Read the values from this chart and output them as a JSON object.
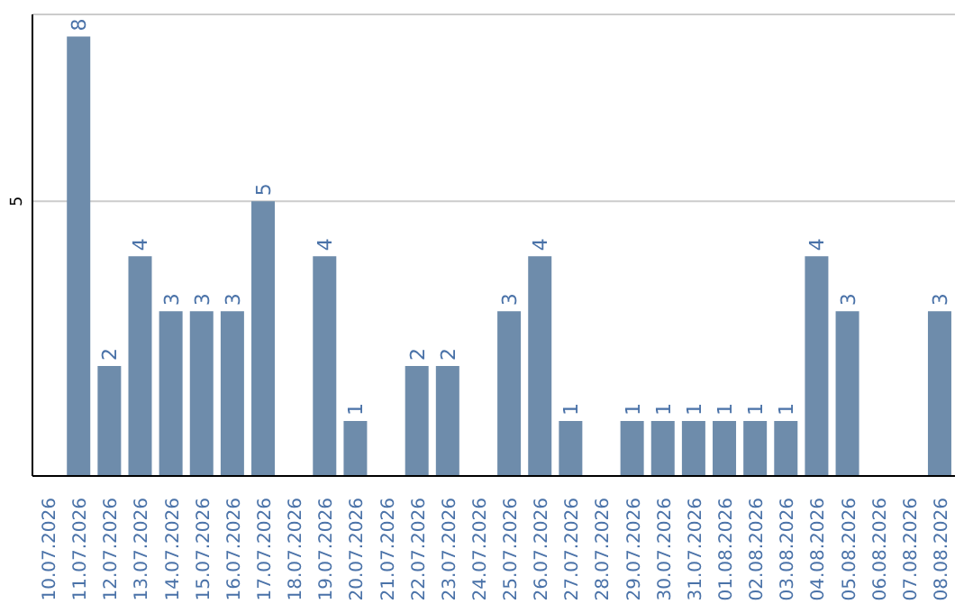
{
  "chart_data": {
    "type": "bar",
    "categories": [
      "10.07.2026",
      "11.07.2026",
      "12.07.2026",
      "13.07.2026",
      "14.07.2026",
      "15.07.2026",
      "16.07.2026",
      "17.07.2026",
      "18.07.2026",
      "19.07.2026",
      "20.07.2026",
      "21.07.2026",
      "22.07.2026",
      "23.07.2026",
      "24.07.2026",
      "25.07.2026",
      "26.07.2026",
      "27.07.2026",
      "28.07.2026",
      "29.07.2026",
      "30.07.2026",
      "31.07.2026",
      "01.08.2026",
      "02.08.2026",
      "03.08.2026",
      "04.08.2026",
      "05.08.2026",
      "06.08.2026",
      "07.08.2026",
      "08.08.2026"
    ],
    "values": [
      null,
      8,
      2,
      4,
      3,
      3,
      3,
      5,
      null,
      4,
      1,
      null,
      2,
      2,
      null,
      3,
      4,
      1,
      null,
      1,
      1,
      1,
      1,
      1,
      1,
      4,
      3,
      null,
      null,
      3
    ],
    "color": "#6e8cab",
    "ylim": [
      0,
      8.4
    ],
    "yticks": [
      5
    ],
    "grid": "y",
    "data_labels": true
  }
}
